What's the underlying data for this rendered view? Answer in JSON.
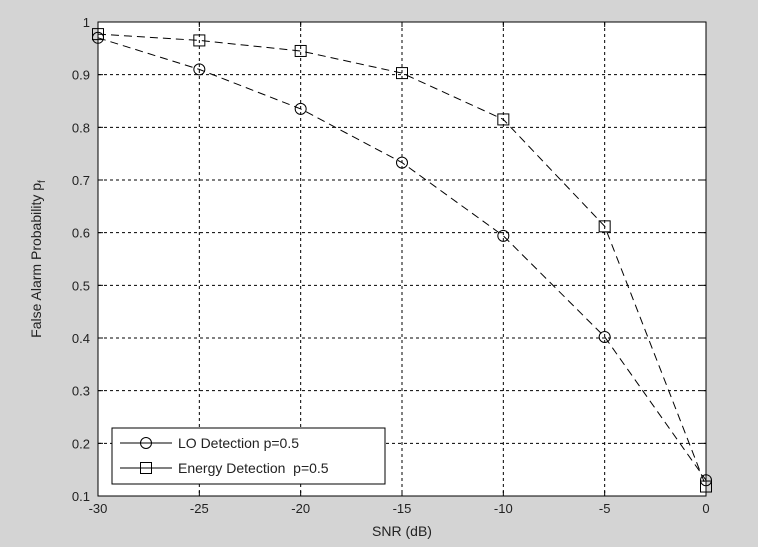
{
  "chart_data": {
    "type": "line",
    "title": "",
    "xlabel": "SNR (dB)",
    "ylabel_main": "False Alarm Probability p",
    "ylabel_sub": "f",
    "xlim": [
      -30,
      0
    ],
    "ylim": [
      0.1,
      1
    ],
    "xticks": [
      -30,
      -25,
      -20,
      -15,
      -10,
      -5,
      0
    ],
    "yticks": [
      0.1,
      0.2,
      0.3,
      0.4,
      0.5,
      0.6,
      0.7,
      0.8,
      0.9,
      1
    ],
    "ytick_labels": [
      "0.1",
      "0.2",
      "0.3",
      "0.4",
      "0.5",
      "0.6",
      "0.7",
      "0.8",
      "0.9",
      "1"
    ],
    "grid": true,
    "legend_position": "bottom-left",
    "series": [
      {
        "name": "LO Detection p=0.5",
        "marker": "circle",
        "x": [
          -30,
          -25,
          -20,
          -15,
          -10,
          -5,
          0
        ],
        "y": [
          0.97,
          0.91,
          0.835,
          0.733,
          0.594,
          0.402,
          0.13
        ]
      },
      {
        "name": "Energy Detection  p=0.5",
        "marker": "square",
        "x": [
          -30,
          -25,
          -20,
          -15,
          -10,
          -5,
          0
        ],
        "y": [
          0.977,
          0.965,
          0.945,
          0.903,
          0.815,
          0.612,
          0.118
        ]
      }
    ]
  }
}
